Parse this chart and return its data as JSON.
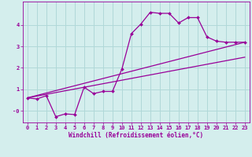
{
  "xlabel": "Windchill (Refroidissement éolien,°C)",
  "background_color": "#d4eeed",
  "grid_color": "#b0d8d8",
  "line_color": "#990099",
  "x_ticks": [
    0,
    1,
    2,
    3,
    4,
    5,
    6,
    7,
    8,
    9,
    10,
    11,
    12,
    13,
    14,
    15,
    16,
    17,
    18,
    19,
    20,
    21,
    22,
    23
  ],
  "y_ticks": [
    0,
    1,
    2,
    3,
    4
  ],
  "y_tick_labels": [
    "-0",
    "1",
    "2",
    "3",
    "4"
  ],
  "ylim": [
    -0.55,
    5.1
  ],
  "xlim": [
    -0.5,
    23.5
  ],
  "series1_x": [
    0,
    1,
    2,
    3,
    4,
    5,
    6,
    7,
    8,
    9,
    10,
    11,
    12,
    13,
    14,
    15,
    16,
    17,
    18,
    19,
    20,
    21,
    22,
    23
  ],
  "series1_y": [
    0.6,
    0.55,
    0.7,
    -0.28,
    -0.15,
    -0.18,
    1.1,
    0.8,
    0.9,
    0.9,
    1.95,
    3.6,
    4.05,
    4.6,
    4.55,
    4.55,
    4.1,
    4.35,
    4.35,
    3.45,
    3.25,
    3.2,
    3.2,
    3.2
  ],
  "series2_x": [
    0,
    23
  ],
  "series2_y": [
    0.6,
    3.2
  ],
  "series3_x": [
    0,
    23
  ],
  "series3_y": [
    0.6,
    2.5
  ],
  "line_width": 0.9,
  "marker": "D",
  "marker_size": 2.0,
  "tick_label_fontsize": 5.0,
  "xlabel_fontsize": 5.5
}
